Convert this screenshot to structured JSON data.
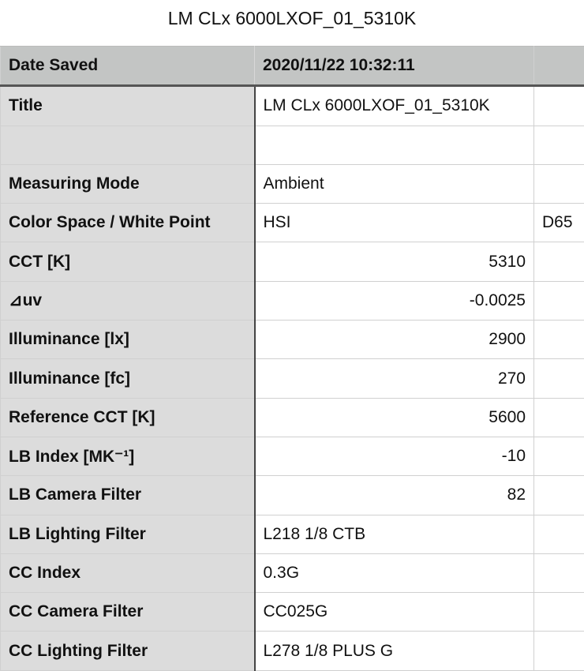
{
  "title": "LM CLx 6000LXOF_01_5310K",
  "header": {
    "label": "Date Saved",
    "value": "2020/11/22 10:32:11",
    "extra": ""
  },
  "rows": [
    {
      "label": "Title",
      "value": "LM CLx 6000LXOF_01_5310K",
      "align": "left",
      "extra": ""
    },
    {
      "label": "",
      "value": "",
      "align": "left",
      "extra": ""
    },
    {
      "label": "Measuring Mode",
      "value": "Ambient",
      "align": "left",
      "extra": ""
    },
    {
      "label": "Color Space / White Point",
      "value": "HSI",
      "align": "left",
      "extra": "D65"
    },
    {
      "label": "CCT [K]",
      "value": "5310",
      "align": "right",
      "extra": ""
    },
    {
      "label": "⊿uv",
      "value": "-0.0025",
      "align": "right",
      "extra": ""
    },
    {
      "label": "Illuminance [lx]",
      "value": "2900",
      "align": "right",
      "extra": ""
    },
    {
      "label": "Illuminance [fc]",
      "value": "270",
      "align": "right",
      "extra": ""
    },
    {
      "label": "Reference CCT [K]",
      "value": "5600",
      "align": "right",
      "extra": ""
    },
    {
      "label": "LB Index [MK⁻¹]",
      "value": "-10",
      "align": "right",
      "extra": ""
    },
    {
      "label": "LB Camera Filter",
      "value": "82",
      "align": "right",
      "extra": ""
    },
    {
      "label": "LB Lighting Filter",
      "value": "L218 1/8 CTB",
      "align": "left",
      "extra": ""
    },
    {
      "label": "CC Index",
      "value": "0.3G",
      "align": "left",
      "extra": ""
    },
    {
      "label": "CC Camera Filter",
      "value": "CC025G",
      "align": "left",
      "extra": ""
    },
    {
      "label": "CC Lighting Filter",
      "value": "L278 1/8 PLUS G",
      "align": "left",
      "extra": ""
    }
  ]
}
